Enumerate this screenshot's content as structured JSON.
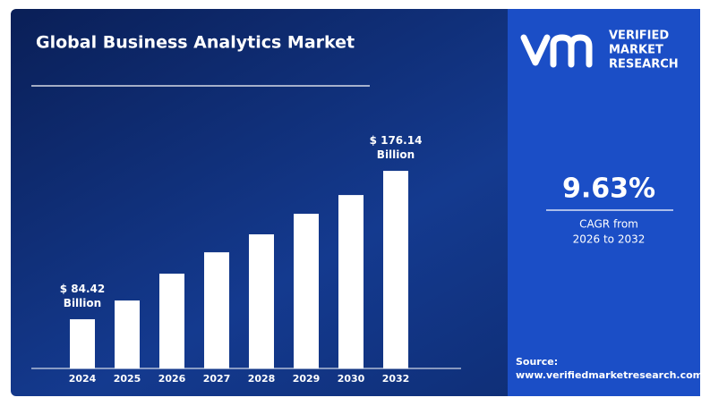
{
  "chart_data": {
    "type": "bar",
    "title": "Global Business Analytics Market",
    "categories": [
      "2024",
      "2025",
      "2026",
      "2027",
      "2028",
      "2029",
      "2030",
      "2032"
    ],
    "values": [
      84.42,
      96,
      112.6,
      125.8,
      136.9,
      149.6,
      161.2,
      176.14
    ],
    "value_labels": [
      "$ 84.42 Billion",
      null,
      null,
      null,
      null,
      null,
      null,
      "$ 176.14 Billion"
    ],
    "color": "#ffffff",
    "ylim": [
      54,
      190
    ]
  },
  "logo": {
    "lines": [
      "VERIFIED",
      "MARKET",
      "RESEARCH"
    ]
  },
  "cagr": {
    "value": "9.63%",
    "caption_lines": [
      "CAGR from",
      "2026 to 2032"
    ]
  },
  "source": {
    "label": "Source:",
    "url": "www.verifiedmarketresearch.com"
  }
}
